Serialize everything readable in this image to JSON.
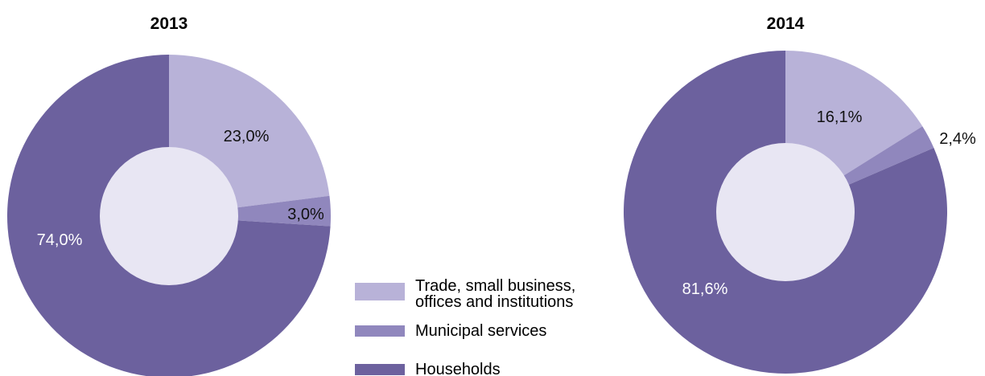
{
  "colors": {
    "trade": "#b8b2d8",
    "municipal": "#9087bd",
    "households": "#6c619e",
    "hole": "#e8e6f3"
  },
  "legend": [
    {
      "key": "trade",
      "lines": [
        "Trade, small business,",
        "offices and institutions"
      ]
    },
    {
      "key": "municipal",
      "lines": [
        "Municipal services"
      ]
    },
    {
      "key": "households",
      "lines": [
        "Households"
      ]
    }
  ],
  "chart_data": [
    {
      "type": "pie",
      "title": "2013",
      "slices": [
        {
          "key": "trade",
          "value": 23.0,
          "label": "23,0%"
        },
        {
          "key": "municipal",
          "value": 3.0,
          "label": "3,0%"
        },
        {
          "key": "households",
          "value": 74.0,
          "label": "74,0%"
        }
      ]
    },
    {
      "type": "pie",
      "title": "2014",
      "slices": [
        {
          "key": "trade",
          "value": 16.1,
          "label": "16,1%"
        },
        {
          "key": "municipal",
          "value": 2.4,
          "label": "2,4%"
        },
        {
          "key": "households",
          "value": 81.6,
          "label": "81,6%"
        }
      ]
    }
  ]
}
